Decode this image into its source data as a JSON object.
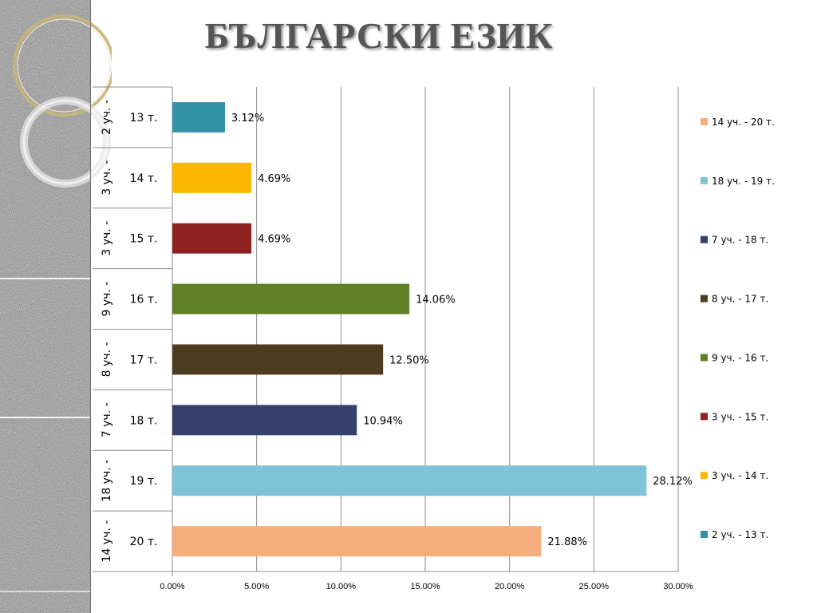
{
  "slide": {
    "title": "БЪЛГАРСКИ ЕЗИК"
  },
  "chart_data": {
    "type": "bar",
    "orientation": "horizontal",
    "title": "",
    "xlabel": "",
    "ylabel": "",
    "xlim": [
      0,
      30
    ],
    "x_ticks": [
      "0.00%",
      "5.00%",
      "10.00%",
      "15.00%",
      "20.00%",
      "25.00%",
      "30.00%"
    ],
    "grid": true,
    "legend_position": "right",
    "bars": [
      {
        "group": "2 уч. -",
        "label": "13 т.",
        "value": 3.12,
        "display": "3.12%",
        "color": "#3491a7",
        "legend": "2 уч. -  13 т."
      },
      {
        "group": "3 уч. -",
        "label": "14 т.",
        "value": 4.69,
        "display": "4.69%",
        "color": "#fcb800",
        "legend": "3 уч. -  14 т."
      },
      {
        "group": "3 уч. -",
        "label": "15 т.",
        "value": 4.69,
        "display": "4.69%",
        "color": "#912222",
        "legend": "3 уч. -  15 т."
      },
      {
        "group": "9 уч. -",
        "label": "16 т.",
        "value": 14.06,
        "display": "14.06%",
        "color": "#5e8026",
        "legend": "9 уч. -  16 т."
      },
      {
        "group": "8 уч. -",
        "label": "17 т.",
        "value": 12.5,
        "display": "12.50%",
        "color": "#4d3c1f",
        "legend": "8 уч. -  17 т."
      },
      {
        "group": "7 уч. -",
        "label": "18 т.",
        "value": 10.94,
        "display": "10.94%",
        "color": "#33416b",
        "legend": "7 уч. -  18 т."
      },
      {
        "group": "18 уч. -",
        "label": "19 т.",
        "value": 28.12,
        "display": "28.12%",
        "color": "#7dc4d6",
        "legend": "18 уч. - 19 т."
      },
      {
        "group": "14 уч. -",
        "label": "20 т.",
        "value": 21.88,
        "display": "21.88%",
        "color": "#f6ad7c",
        "legend": "14 уч. - 20 т."
      }
    ]
  }
}
